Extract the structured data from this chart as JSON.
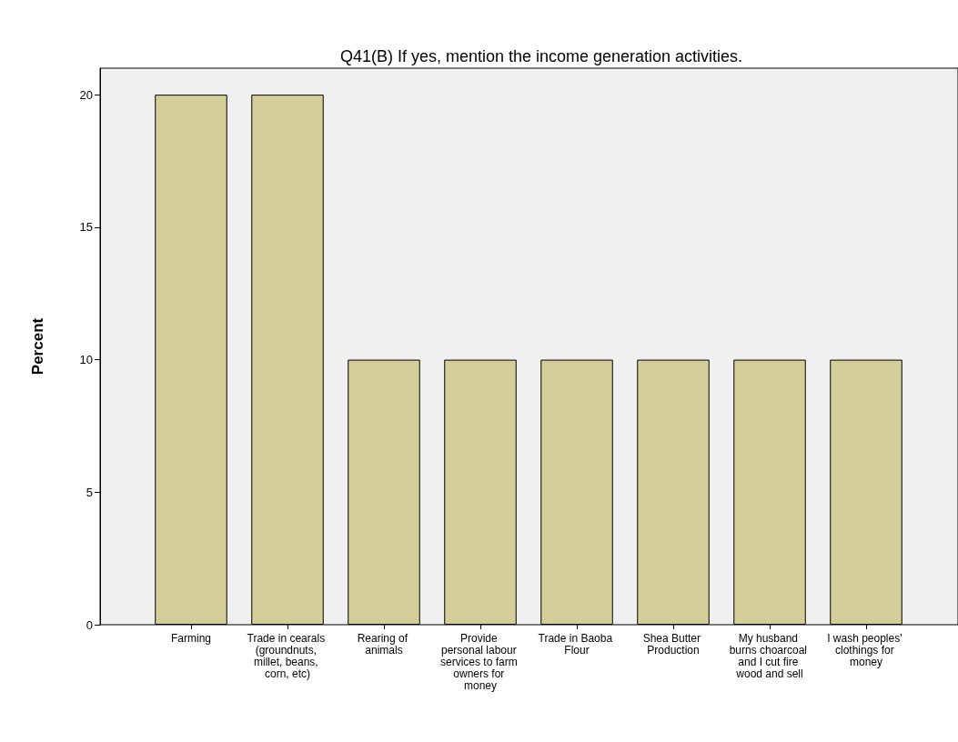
{
  "chart_data": {
    "type": "bar",
    "title": "Q41(B) If yes, mention the income generation activities.",
    "ylabel": "Percent",
    "categories": [
      "Farming",
      "Trade in cearals (groundnuts, millet, beans, corn, etc)",
      "Rearing of animals",
      "Provide personal labour services to farm owners for money",
      "Trade in Baoba Flour",
      "Shea Butter Production",
      "My husband burns choarcoal and I cut fire wood and sell",
      "I wash peoples' clothings for money"
    ],
    "values": [
      20,
      20,
      10,
      10,
      10,
      10,
      10,
      10
    ],
    "color": "#d3ce98",
    "ylim": [
      0,
      21
    ],
    "yticks": [
      0,
      5,
      10,
      15,
      20
    ],
    "grid": false
  }
}
